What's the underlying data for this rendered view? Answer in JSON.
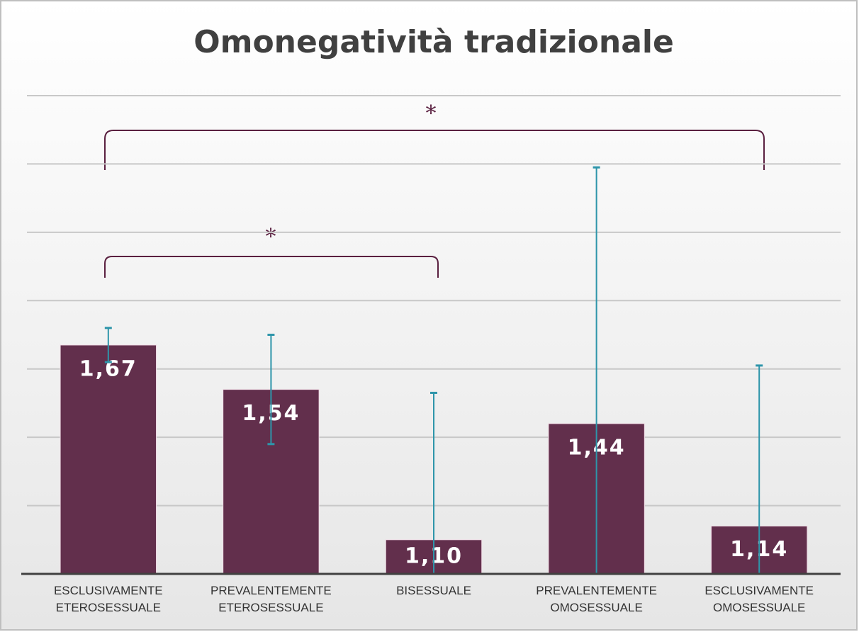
{
  "chart_data": {
    "type": "bar",
    "title": "Omonegatività tradizionale",
    "categories": [
      "ESCLUSIVAMENTE ETEROSESSUALE",
      "PREVALENTEMENTE ETEROSESSUALE",
      "BISESSUALE",
      "PREVALENTEMENTE OMOSESSUALE",
      "ESCLUSIVAMENTE OMOSESSUALE"
    ],
    "values": [
      1.67,
      1.54,
      1.1,
      1.44,
      1.14
    ],
    "value_labels": [
      "1,67",
      "1,54",
      "1,10",
      "1,44",
      "1,14"
    ],
    "errors": [
      0.05,
      0.16,
      0.43,
      0.75,
      0.47
    ],
    "color": "#622f4c",
    "error_color": "#2e95aa",
    "ylim": [
      1,
      2.4
    ],
    "yticks": [
      1,
      1.2,
      1.4,
      1.6,
      1.8,
      2,
      2.2,
      2.4
    ],
    "grid": true,
    "annotations": [
      "*",
      "*"
    ]
  }
}
